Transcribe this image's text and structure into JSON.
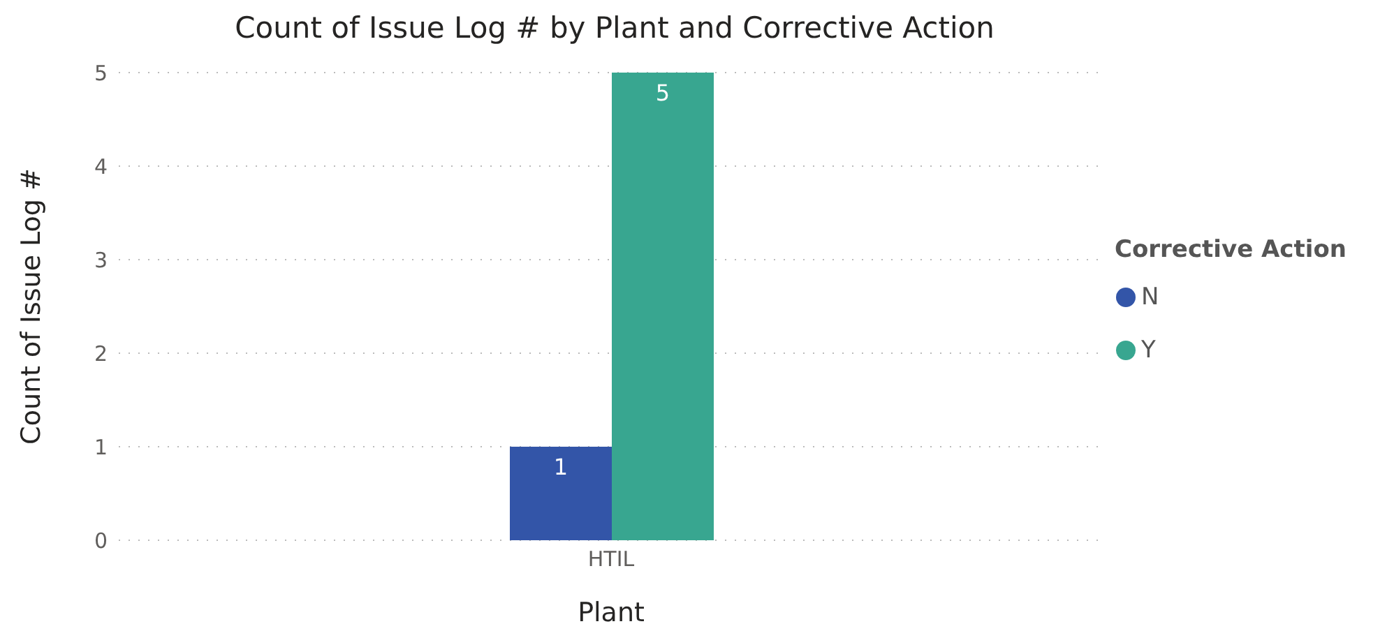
{
  "chart_data": {
    "type": "bar",
    "title": "Count of Issue Log # by Plant and Corrective Action",
    "xlabel": "Plant",
    "ylabel": "Count of Issue Log #",
    "legend_title": "Corrective Action",
    "categories": [
      "HTIL"
    ],
    "series": [
      {
        "name": "N",
        "color": "#3355a8",
        "values": [
          1
        ]
      },
      {
        "name": "Y",
        "color": "#38a690",
        "values": [
          5
        ]
      }
    ],
    "ylim": [
      0,
      5
    ],
    "yticks": [
      0,
      1,
      2,
      3,
      4,
      5
    ],
    "grid": "y",
    "legend": "right",
    "data_labels": true
  }
}
